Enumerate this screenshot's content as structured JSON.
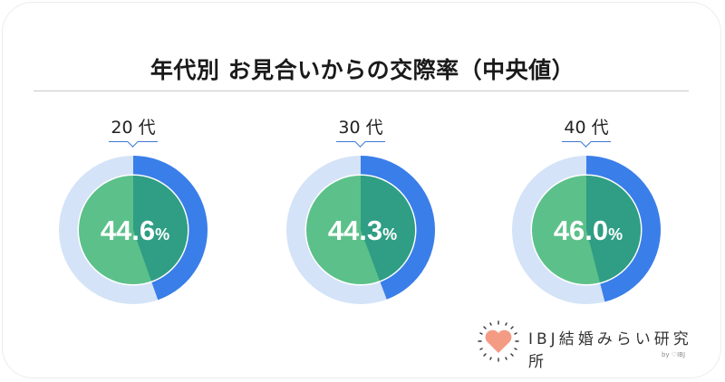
{
  "title": "年代別 お見合いからの交際率（中央値）",
  "chart_data": {
    "type": "pie",
    "title": "年代別 お見合いからの交際率（中央値）",
    "categories": [
      "20代",
      "30代",
      "40代"
    ],
    "series": [
      {
        "name": "交際率（中央値）",
        "values": [
          44.6,
          44.3,
          46.0
        ]
      }
    ],
    "unit": "%",
    "colors": {
      "outer_filled": "#3a7ee9",
      "outer_remaining": "#d4e3f7",
      "inner_filled": "#2f9e84",
      "inner_remaining": "#5cc08a"
    }
  },
  "donuts": [
    {
      "label": "20 代",
      "value": "44.6",
      "unit": "%"
    },
    {
      "label": "30 代",
      "value": "44.3",
      "unit": "%"
    },
    {
      "label": "40 代",
      "value": "46.0",
      "unit": "%"
    }
  ],
  "logo": {
    "text": "IBJ結婚みらい研究所",
    "by": "by ♡IBJ"
  }
}
